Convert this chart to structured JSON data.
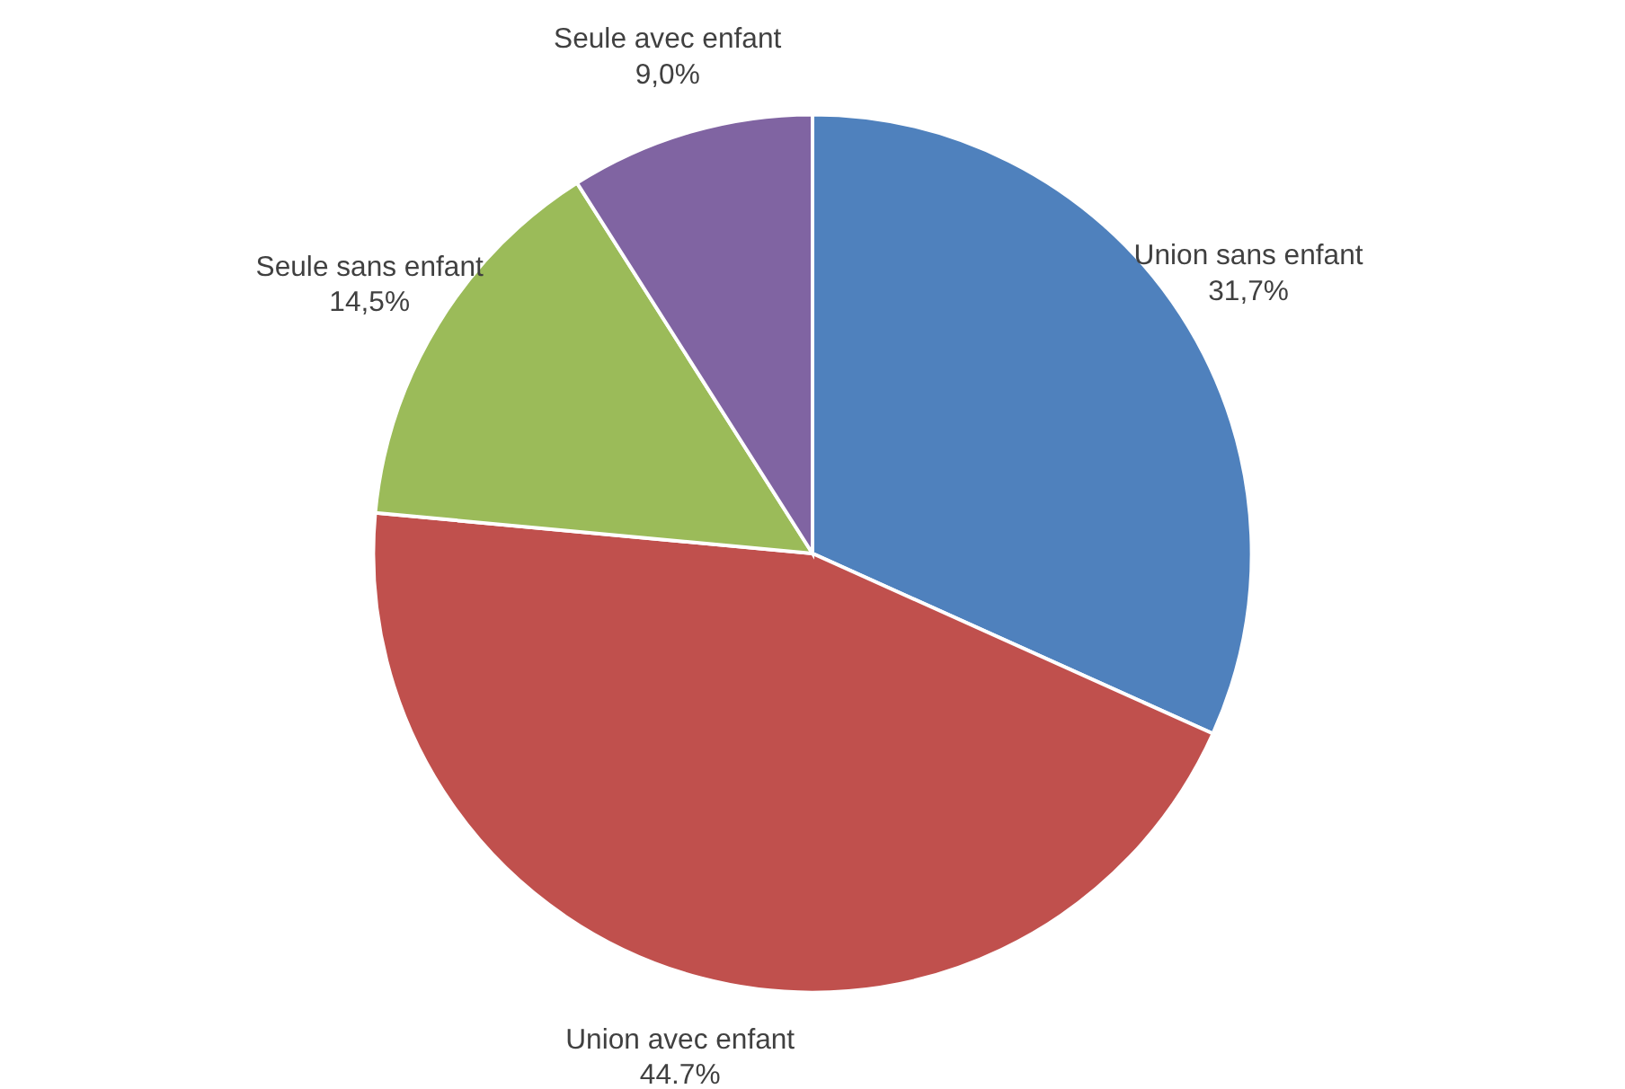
{
  "chart_data": {
    "type": "pie",
    "categories": [
      "Union sans enfant",
      "Union avec enfant",
      "Seule sans enfant",
      "Seule avec enfant"
    ],
    "values": [
      31.7,
      44.7,
      14.5,
      9.0
    ],
    "colors": [
      "#4f81bd",
      "#c0504d",
      "#9bbb59",
      "#8064a2"
    ],
    "value_labels": [
      "31,7%",
      "44.7%",
      "14,5%",
      "9,0%"
    ]
  }
}
